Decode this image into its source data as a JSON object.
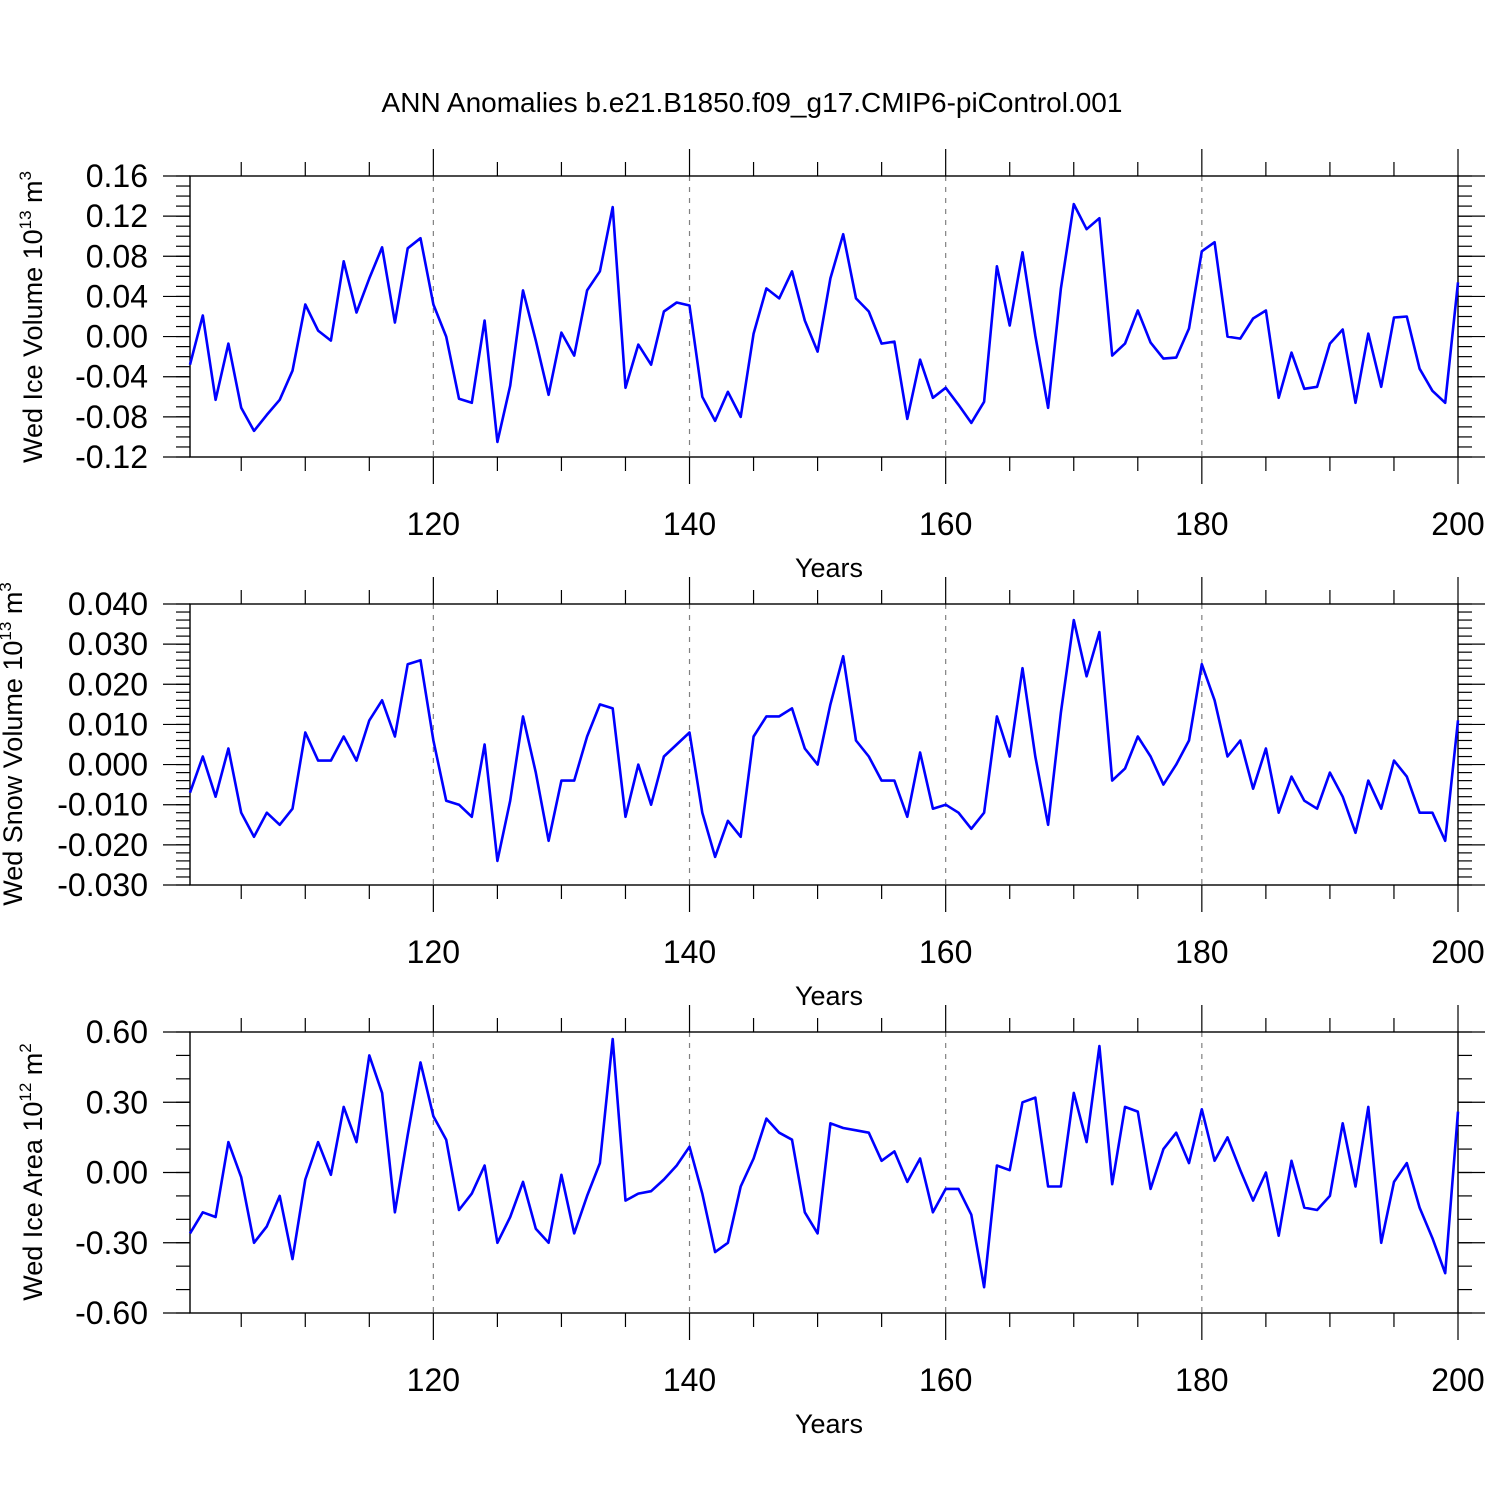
{
  "figure": {
    "title": "ANN Anomalies b.e21.B1850.f09_g17.CMIP6-piControl.001",
    "line_color": "#0000ff",
    "grid_color": "#808080"
  },
  "chart_data": [
    {
      "type": "line",
      "title": "ANN Anomalies b.e21.B1850.f09_g17.CMIP6-piControl.001",
      "xlabel": "Years",
      "ylabel": "Wed Ice Volume 10",
      "ylabel_exp": "13",
      "ylabel_unit": " m",
      "ylabel_unit_exp": "3",
      "xlim": [
        101,
        200
      ],
      "ylim": [
        -0.12,
        0.16
      ],
      "xticks": [
        120,
        140,
        160,
        180,
        200
      ],
      "xtick_labels": [
        "120",
        "140",
        "160",
        "180",
        "200"
      ],
      "yticks": [
        -0.12,
        -0.08,
        -0.04,
        0.0,
        0.04,
        0.08,
        0.12,
        0.16
      ],
      "ytick_labels": [
        "-0.12",
        "-0.08",
        "-0.04",
        "0.00",
        "0.04",
        "0.08",
        "0.12",
        "0.16"
      ],
      "y_minor_step": 0.01,
      "grid": "dashed vertical at major x ticks",
      "x": [
        101,
        102,
        103,
        104,
        105,
        106,
        107,
        108,
        109,
        110,
        111,
        112,
        113,
        114,
        115,
        116,
        117,
        118,
        119,
        120,
        121,
        122,
        123,
        124,
        125,
        126,
        127,
        128,
        129,
        130,
        131,
        132,
        133,
        134,
        135,
        136,
        137,
        138,
        139,
        140,
        141,
        142,
        143,
        144,
        145,
        146,
        147,
        148,
        149,
        150,
        151,
        152,
        153,
        154,
        155,
        156,
        157,
        158,
        159,
        160,
        161,
        162,
        163,
        164,
        165,
        166,
        167,
        168,
        169,
        170,
        171,
        172,
        173,
        174,
        175,
        176,
        177,
        178,
        179,
        180,
        181,
        182,
        183,
        184,
        185,
        186,
        187,
        188,
        189,
        190,
        191,
        192,
        193,
        194,
        195,
        196,
        197,
        198,
        199,
        200
      ],
      "values": [
        -0.028,
        0.021,
        -0.063,
        -0.007,
        -0.071,
        -0.094,
        -0.078,
        -0.063,
        -0.034,
        0.032,
        0.006,
        -0.004,
        0.075,
        0.024,
        0.058,
        0.089,
        0.014,
        0.088,
        0.098,
        0.032,
        0.0,
        -0.062,
        -0.066,
        0.016,
        -0.105,
        -0.049,
        0.046,
        -0.004,
        -0.058,
        0.004,
        -0.019,
        0.046,
        0.065,
        0.129,
        -0.051,
        -0.008,
        -0.028,
        0.025,
        0.034,
        0.031,
        -0.06,
        -0.084,
        -0.055,
        -0.08,
        0.003,
        0.048,
        0.038,
        0.065,
        0.016,
        -0.015,
        0.058,
        0.102,
        0.038,
        0.025,
        -0.007,
        -0.005,
        -0.082,
        -0.023,
        -0.061,
        -0.051,
        -0.068,
        -0.086,
        -0.065,
        0.07,
        0.011,
        0.084,
        0.001,
        -0.071,
        0.048,
        0.132,
        0.107,
        0.118,
        -0.019,
        -0.007,
        0.026,
        -0.006,
        -0.022,
        -0.021,
        0.008,
        0.085,
        0.094,
        0.0,
        -0.002,
        0.018,
        0.026,
        -0.061,
        -0.016,
        -0.052,
        -0.05,
        -0.007,
        0.007,
        -0.066,
        0.003,
        -0.05,
        0.019,
        0.02,
        -0.032,
        -0.054,
        -0.066,
        0.054
      ]
    },
    {
      "type": "line",
      "xlabel": "Years",
      "ylabel": "Wed Snow Volume 10",
      "ylabel_exp": "13",
      "ylabel_unit": " m",
      "ylabel_unit_exp": "3",
      "xlim": [
        101,
        200
      ],
      "ylim": [
        -0.03,
        0.04
      ],
      "xticks": [
        120,
        140,
        160,
        180,
        200
      ],
      "xtick_labels": [
        "120",
        "140",
        "160",
        "180",
        "200"
      ],
      "yticks": [
        -0.03,
        -0.02,
        -0.01,
        0.0,
        0.01,
        0.02,
        0.03,
        0.04
      ],
      "ytick_labels": [
        "-0.030",
        "-0.020",
        "-0.010",
        "0.000",
        "0.010",
        "0.020",
        "0.030",
        "0.040"
      ],
      "y_minor_step": 0.002,
      "grid": "dashed vertical at major x ticks",
      "x": [
        101,
        102,
        103,
        104,
        105,
        106,
        107,
        108,
        109,
        110,
        111,
        112,
        113,
        114,
        115,
        116,
        117,
        118,
        119,
        120,
        121,
        122,
        123,
        124,
        125,
        126,
        127,
        128,
        129,
        130,
        131,
        132,
        133,
        134,
        135,
        136,
        137,
        138,
        139,
        140,
        141,
        142,
        143,
        144,
        145,
        146,
        147,
        148,
        149,
        150,
        151,
        152,
        153,
        154,
        155,
        156,
        157,
        158,
        159,
        160,
        161,
        162,
        163,
        164,
        165,
        166,
        167,
        168,
        169,
        170,
        171,
        172,
        173,
        174,
        175,
        176,
        177,
        178,
        179,
        180,
        181,
        182,
        183,
        184,
        185,
        186,
        187,
        188,
        189,
        190,
        191,
        192,
        193,
        194,
        195,
        196,
        197,
        198,
        199,
        200
      ],
      "values": [
        -0.007,
        0.002,
        -0.008,
        0.004,
        -0.012,
        -0.018,
        -0.012,
        -0.015,
        -0.011,
        0.008,
        0.001,
        0.001,
        0.007,
        0.001,
        0.011,
        0.016,
        0.007,
        0.025,
        0.026,
        0.006,
        -0.009,
        -0.01,
        -0.013,
        0.005,
        -0.024,
        -0.009,
        0.012,
        -0.002,
        -0.019,
        -0.004,
        -0.004,
        0.007,
        0.015,
        0.014,
        -0.013,
        0.0,
        -0.01,
        0.002,
        0.005,
        0.008,
        -0.012,
        -0.023,
        -0.014,
        -0.018,
        0.007,
        0.012,
        0.012,
        0.014,
        0.004,
        0.0,
        0.015,
        0.027,
        0.006,
        0.002,
        -0.004,
        -0.004,
        -0.013,
        0.003,
        -0.011,
        -0.01,
        -0.012,
        -0.016,
        -0.012,
        0.012,
        0.002,
        0.024,
        0.002,
        -0.015,
        0.013,
        0.036,
        0.022,
        0.033,
        -0.004,
        -0.001,
        0.007,
        0.002,
        -0.005,
        0.0,
        0.006,
        0.025,
        0.016,
        0.002,
        0.006,
        -0.006,
        0.004,
        -0.012,
        -0.003,
        -0.009,
        -0.011,
        -0.002,
        -0.008,
        -0.017,
        -0.004,
        -0.011,
        0.001,
        -0.003,
        -0.012,
        -0.012,
        -0.019,
        0.011
      ]
    },
    {
      "type": "line",
      "xlabel": "Years",
      "ylabel": "Wed Ice Area 10",
      "ylabel_exp": "12",
      "ylabel_unit": " m",
      "ylabel_unit_exp": "2",
      "xlim": [
        101,
        200
      ],
      "ylim": [
        -0.6,
        0.6
      ],
      "xticks": [
        120,
        140,
        160,
        180,
        200
      ],
      "xtick_labels": [
        "120",
        "140",
        "160",
        "180",
        "200"
      ],
      "yticks": [
        -0.6,
        -0.3,
        0.0,
        0.3,
        0.6
      ],
      "ytick_labels": [
        "-0.60",
        "-0.30",
        "0.00",
        "0.30",
        "0.60"
      ],
      "y_minor_step": 0.1,
      "grid": "dashed vertical at major x ticks",
      "x": [
        101,
        102,
        103,
        104,
        105,
        106,
        107,
        108,
        109,
        110,
        111,
        112,
        113,
        114,
        115,
        116,
        117,
        118,
        119,
        120,
        121,
        122,
        123,
        124,
        125,
        126,
        127,
        128,
        129,
        130,
        131,
        132,
        133,
        134,
        135,
        136,
        137,
        138,
        139,
        140,
        141,
        142,
        143,
        144,
        145,
        146,
        147,
        148,
        149,
        150,
        151,
        152,
        153,
        154,
        155,
        156,
        157,
        158,
        159,
        160,
        161,
        162,
        163,
        164,
        165,
        166,
        167,
        168,
        169,
        170,
        171,
        172,
        173,
        174,
        175,
        176,
        177,
        178,
        179,
        180,
        181,
        182,
        183,
        184,
        185,
        186,
        187,
        188,
        189,
        190,
        191,
        192,
        193,
        194,
        195,
        196,
        197,
        198,
        199,
        200
      ],
      "values": [
        -0.26,
        -0.17,
        -0.19,
        0.13,
        -0.02,
        -0.3,
        -0.23,
        -0.1,
        -0.37,
        -0.03,
        0.13,
        -0.01,
        0.28,
        0.13,
        0.5,
        0.34,
        -0.17,
        0.16,
        0.47,
        0.24,
        0.14,
        -0.16,
        -0.09,
        0.03,
        -0.3,
        -0.19,
        -0.04,
        -0.24,
        -0.3,
        -0.01,
        -0.26,
        -0.1,
        0.04,
        0.57,
        -0.12,
        -0.09,
        -0.08,
        -0.03,
        0.03,
        0.11,
        -0.09,
        -0.34,
        -0.3,
        -0.06,
        0.06,
        0.23,
        0.17,
        0.14,
        -0.17,
        -0.26,
        0.21,
        0.19,
        0.18,
        0.17,
        0.05,
        0.09,
        -0.04,
        0.06,
        -0.17,
        -0.07,
        -0.07,
        -0.18,
        -0.49,
        0.03,
        0.01,
        0.3,
        0.32,
        -0.06,
        -0.06,
        0.34,
        0.13,
        0.54,
        -0.05,
        0.28,
        0.26,
        -0.07,
        0.1,
        0.17,
        0.04,
        0.27,
        0.05,
        0.15,
        0.01,
        -0.12,
        0.0,
        -0.27,
        0.05,
        -0.15,
        -0.16,
        -0.1,
        0.21,
        -0.06,
        0.28,
        -0.3,
        -0.04,
        0.04,
        -0.15,
        -0.28,
        -0.43,
        0.26
      ]
    }
  ]
}
